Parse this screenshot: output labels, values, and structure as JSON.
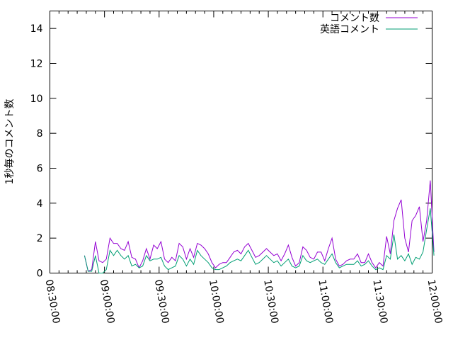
{
  "chart_data": {
    "type": "line",
    "title": "",
    "xlabel": "",
    "ylabel": "1秒毎のコメント数",
    "xlim": [
      "08:30:00",
      "12:00:00"
    ],
    "ylim": [
      0,
      15
    ],
    "grid": false,
    "legend_placement": "top-right",
    "x_tick_labels": [
      "08:30:00",
      "09:00:00",
      "09:30:00",
      "10:00:00",
      "10:30:00",
      "11:00:00",
      "11:30:00",
      "12:00:00"
    ],
    "y_tick_labels": [
      "0",
      "2",
      "4",
      "6",
      "8",
      "10",
      "12",
      "14"
    ],
    "x_start": "08:49:00",
    "x_step_minutes": 2,
    "series": [
      {
        "name": "コメント数",
        "color": "#9400d3",
        "values": [
          1,
          0.1,
          0.2,
          1.8,
          0.7,
          0.6,
          0.8,
          2.0,
          1.7,
          1.7,
          1.4,
          1.3,
          1.8,
          0.9,
          0.8,
          0.3,
          0.7,
          1.4,
          0.8,
          1.6,
          1.4,
          1.8,
          0.8,
          0.6,
          0.9,
          0.7,
          1.7,
          1.5,
          0.8,
          1.4,
          0.9,
          1.7,
          1.6,
          1.4,
          1.1,
          0.6,
          0.3,
          0.5,
          0.6,
          0.6,
          0.9,
          1.2,
          1.3,
          1.1,
          1.5,
          1.7,
          1.3,
          0.9,
          1.0,
          1.2,
          1.4,
          1.2,
          1.0,
          1.1,
          0.7,
          1.1,
          1.6,
          0.9,
          0.4,
          0.6,
          1.5,
          1.3,
          0.9,
          0.8,
          1.2,
          1.2,
          0.7,
          1.4,
          2.0,
          0.8,
          0.4,
          0.5,
          0.7,
          0.8,
          0.8,
          1.1,
          0.6,
          0.6,
          1.1,
          0.6,
          0.3,
          0.6,
          0.4,
          2.1,
          1.1,
          3.0,
          3.7,
          4.2,
          2.0,
          1.2,
          3.0,
          3.3,
          3.8,
          1.8,
          3.0,
          5.3,
          1.2
        ]
      },
      {
        "name": "英語コメント",
        "color": "#009e73",
        "values": [
          1,
          0.1,
          0.1,
          1.0,
          0,
          0,
          0.2,
          1.3,
          1.0,
          1.3,
          1.0,
          0.8,
          1.0,
          0.4,
          0.5,
          0.3,
          0.4,
          1.0,
          0.7,
          0.8,
          0.8,
          0.9,
          0.4,
          0.2,
          0.3,
          0.4,
          1.0,
          0.8,
          0.4,
          0.8,
          0.5,
          1.3,
          1.0,
          0.8,
          0.6,
          0.3,
          0.2,
          0.2,
          0.3,
          0.4,
          0.6,
          0.7,
          0.8,
          0.7,
          1.0,
          1.3,
          0.9,
          0.5,
          0.6,
          0.8,
          1.0,
          0.8,
          0.6,
          0.7,
          0.4,
          0.6,
          0.8,
          0.4,
          0.3,
          0.4,
          1.0,
          0.7,
          0.6,
          0.7,
          0.8,
          0.6,
          0.5,
          0.8,
          1.1,
          0.6,
          0.3,
          0.4,
          0.5,
          0.5,
          0.5,
          0.7,
          0.4,
          0.5,
          0.7,
          0.4,
          0.2,
          0.3,
          0.2,
          1.0,
          0.8,
          2.2,
          0.8,
          1.0,
          0.7,
          1.1,
          0.5,
          0.9,
          0.8,
          1.2,
          2.5,
          3.7,
          1.0
        ]
      }
    ]
  }
}
